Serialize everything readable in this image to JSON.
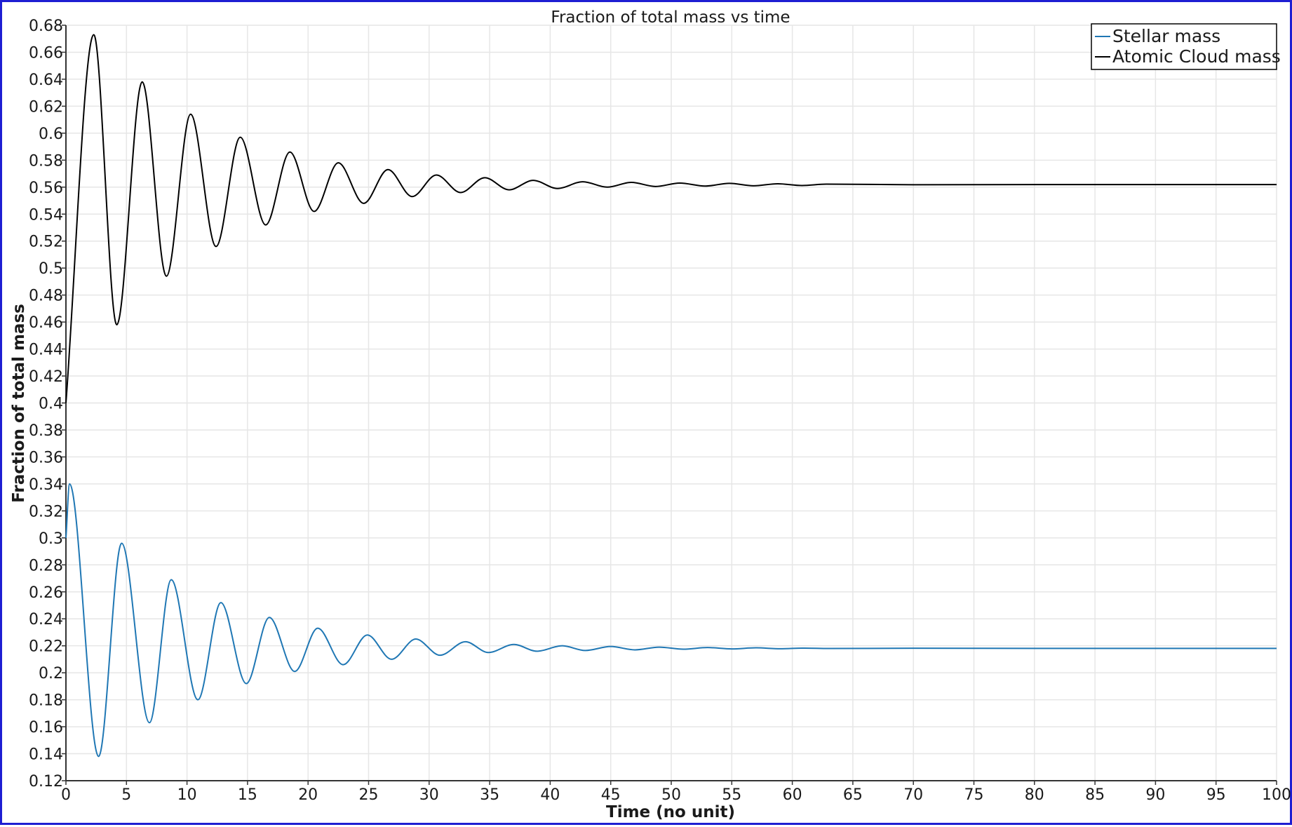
{
  "chart_data": {
    "type": "line",
    "title": "Fraction of total mass vs time",
    "xlabel": "Time (no unit)",
    "ylabel": "Fraction of total mass",
    "xlim": [
      0,
      100
    ],
    "ylim": [
      0.12,
      0.68
    ],
    "xticks": [
      "0",
      "5",
      "10",
      "15",
      "20",
      "25",
      "30",
      "35",
      "40",
      "45",
      "50",
      "55",
      "60",
      "65",
      "70",
      "75",
      "80",
      "85",
      "90",
      "95",
      "100"
    ],
    "yticks": [
      "0.12",
      "0.14",
      "0.16",
      "0.18",
      "0.2",
      "0.22",
      "0.24",
      "0.26",
      "0.28",
      "0.3",
      "0.32",
      "0.34",
      "0.36",
      "0.38",
      "0.4",
      "0.42",
      "0.44",
      "0.46",
      "0.48",
      "0.5",
      "0.52",
      "0.54",
      "0.56",
      "0.58",
      "0.6",
      "0.62",
      "0.64",
      "0.66",
      "0.68"
    ],
    "grid": true,
    "legend_position": "top-right",
    "series": [
      {
        "name": "Stellar mass",
        "color": "#1f77b4",
        "x": [
          0,
          0.3,
          2.7,
          4.6,
          6.9,
          8.7,
          10.9,
          12.8,
          14.9,
          16.8,
          18.9,
          20.8,
          22.9,
          24.9,
          26.9,
          28.9,
          30.9,
          33.0,
          34.9,
          37.0,
          38.9,
          41.0,
          42.9,
          45.0,
          47.0,
          49.0,
          51.0,
          53.0,
          55.0,
          57.0,
          59.0,
          61.0,
          63.0,
          70.0,
          80.0,
          90.0,
          100.0
        ],
        "y": [
          0.3,
          0.34,
          0.138,
          0.296,
          0.163,
          0.269,
          0.18,
          0.252,
          0.192,
          0.241,
          0.201,
          0.233,
          0.206,
          0.228,
          0.21,
          0.225,
          0.213,
          0.223,
          0.215,
          0.221,
          0.216,
          0.22,
          0.2165,
          0.2195,
          0.217,
          0.219,
          0.2175,
          0.2187,
          0.2177,
          0.2185,
          0.2178,
          0.2183,
          0.218,
          0.2182,
          0.2181,
          0.2181,
          0.2181
        ]
      },
      {
        "name": "Atomic Cloud mass",
        "color": "#000000",
        "x": [
          0,
          2.3,
          4.2,
          6.3,
          8.3,
          10.3,
          12.4,
          14.4,
          16.5,
          18.5,
          20.5,
          22.5,
          24.6,
          26.6,
          28.6,
          30.6,
          32.6,
          34.6,
          36.6,
          38.6,
          40.6,
          42.7,
          44.7,
          46.7,
          48.7,
          50.7,
          52.8,
          54.8,
          56.8,
          58.8,
          60.8,
          62.8,
          70.0,
          80.0,
          90.0,
          100.0
        ],
        "y": [
          0.4,
          0.673,
          0.458,
          0.638,
          0.494,
          0.614,
          0.516,
          0.597,
          0.532,
          0.586,
          0.542,
          0.578,
          0.548,
          0.573,
          0.553,
          0.569,
          0.556,
          0.567,
          0.558,
          0.565,
          0.559,
          0.564,
          0.56,
          0.5635,
          0.5605,
          0.563,
          0.5608,
          0.5628,
          0.561,
          0.5625,
          0.5612,
          0.5622,
          0.5618,
          0.5619,
          0.5619,
          0.5619
        ]
      }
    ]
  }
}
